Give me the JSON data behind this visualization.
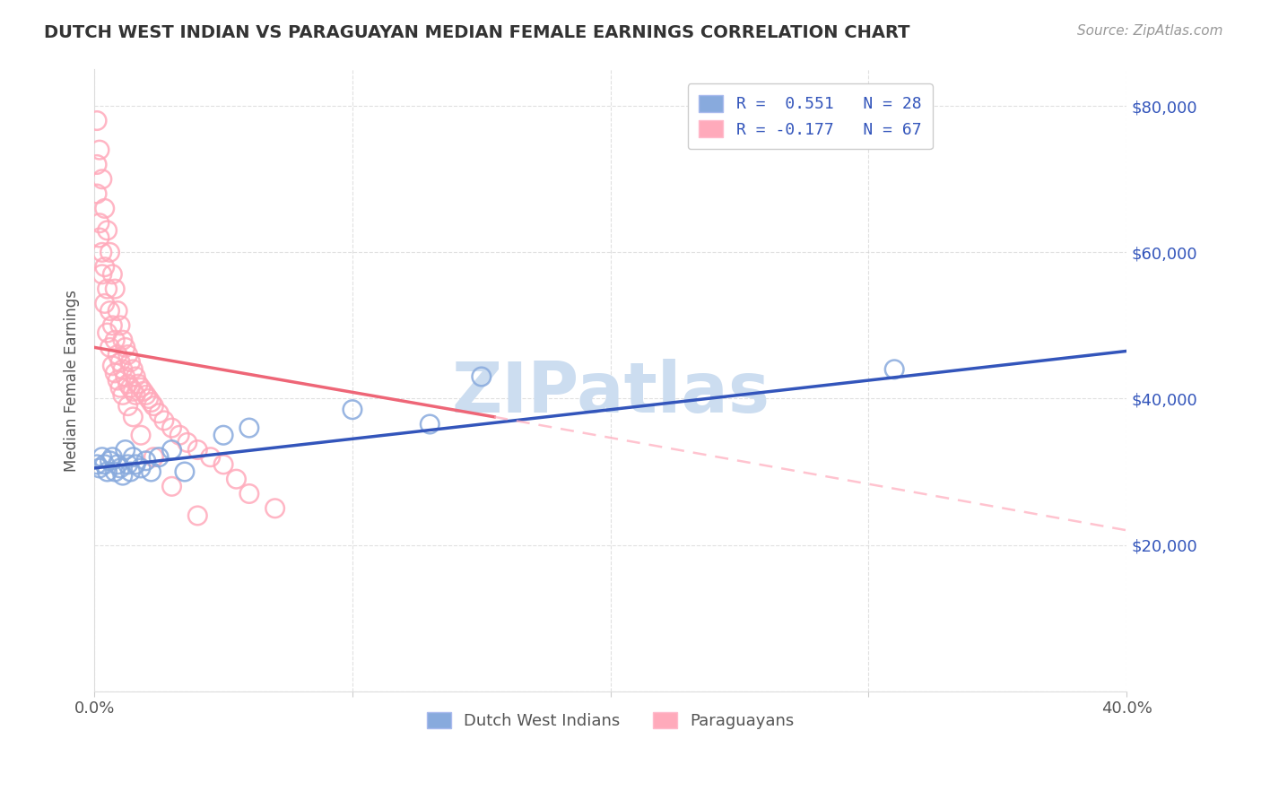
{
  "title": "DUTCH WEST INDIAN VS PARAGUAYAN MEDIAN FEMALE EARNINGS CORRELATION CHART",
  "source_text": "Source: ZipAtlas.com",
  "ylabel": "Median Female Earnings",
  "blue_color": "#88AADD",
  "pink_color": "#FFAABB",
  "blue_edge_color": "#5577BB",
  "pink_edge_color": "#FF7799",
  "blue_line_color": "#3355BB",
  "pink_line_color": "#EE6677",
  "pink_dash_color": "#FFAABB",
  "watermark_color": "#CCDDF0",
  "title_color": "#333333",
  "right_tick_color": "#3355BB",
  "background_color": "#FFFFFF",
  "grid_color": "#CCCCCC",
  "legend_entry1": "R =  0.551   N = 28",
  "legend_entry2": "R = -0.177   N = 67",
  "legend_label1": "Dutch West Indians",
  "legend_label2": "Paraguayans",
  "blue_scatter": {
    "x": [
      0.001,
      0.002,
      0.003,
      0.004,
      0.005,
      0.006,
      0.007,
      0.008,
      0.009,
      0.01,
      0.011,
      0.012,
      0.013,
      0.014,
      0.015,
      0.016,
      0.018,
      0.02,
      0.022,
      0.025,
      0.03,
      0.035,
      0.05,
      0.06,
      0.1,
      0.13,
      0.15,
      0.31
    ],
    "y": [
      31000,
      30500,
      32000,
      31000,
      30000,
      31500,
      32000,
      30000,
      31000,
      30500,
      29500,
      33000,
      31000,
      30000,
      32000,
      31000,
      30500,
      31500,
      30000,
      32000,
      33000,
      30000,
      35000,
      36000,
      38500,
      36500,
      43000,
      44000
    ]
  },
  "pink_scatter": {
    "x": [
      0.001,
      0.001,
      0.002,
      0.002,
      0.003,
      0.003,
      0.004,
      0.004,
      0.005,
      0.005,
      0.006,
      0.006,
      0.007,
      0.007,
      0.008,
      0.008,
      0.009,
      0.009,
      0.01,
      0.01,
      0.011,
      0.011,
      0.012,
      0.012,
      0.013,
      0.013,
      0.014,
      0.014,
      0.015,
      0.015,
      0.016,
      0.016,
      0.017,
      0.018,
      0.019,
      0.02,
      0.021,
      0.022,
      0.023,
      0.025,
      0.027,
      0.03,
      0.033,
      0.036,
      0.04,
      0.045,
      0.05,
      0.055,
      0.06,
      0.07,
      0.001,
      0.002,
      0.003,
      0.004,
      0.005,
      0.006,
      0.007,
      0.008,
      0.009,
      0.01,
      0.011,
      0.013,
      0.015,
      0.018,
      0.023,
      0.03,
      0.04
    ],
    "y": [
      78000,
      68000,
      74000,
      64000,
      70000,
      60000,
      66000,
      58000,
      63000,
      55000,
      60000,
      52000,
      57000,
      50000,
      55000,
      48000,
      52000,
      46000,
      50000,
      45000,
      48000,
      44000,
      47000,
      43000,
      46000,
      42000,
      45000,
      41500,
      44000,
      41000,
      43000,
      40500,
      42000,
      41500,
      41000,
      40500,
      40000,
      39500,
      39000,
      38000,
      37000,
      36000,
      35000,
      34000,
      33000,
      32000,
      31000,
      29000,
      27000,
      25000,
      72000,
      62000,
      57000,
      53000,
      49000,
      47000,
      44500,
      43500,
      42500,
      41500,
      40500,
      39000,
      37500,
      35000,
      32000,
      28000,
      24000
    ]
  },
  "blue_line": {
    "x0": 0.0,
    "x1": 0.4,
    "y0": 30500,
    "y1": 46500
  },
  "pink_line_solid": {
    "x0": 0.0,
    "x1": 0.155,
    "y0": 47000,
    "y1": 37500
  },
  "pink_line_dash": {
    "x0": 0.155,
    "x1": 0.4,
    "y0": 37500,
    "y1": 22000
  },
  "xlim": [
    0.0,
    0.4
  ],
  "ylim": [
    0,
    85000
  ]
}
